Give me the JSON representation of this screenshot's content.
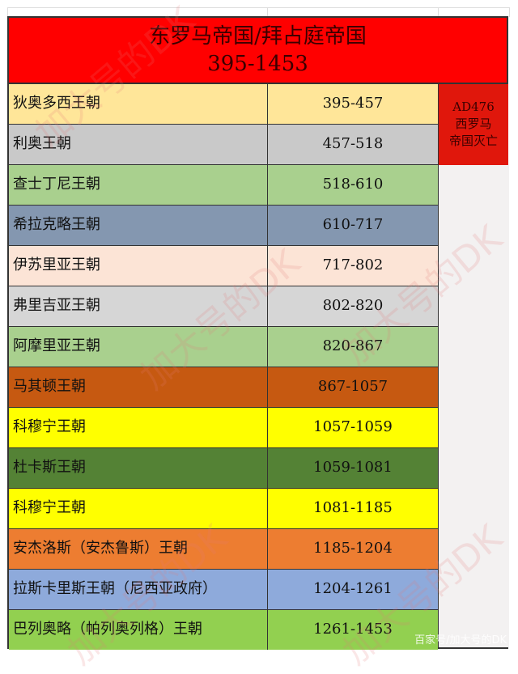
{
  "title": {
    "line1": "东罗马帝国/拜占庭帝国",
    "line2": "395-1453"
  },
  "side_note": {
    "line1": "AD476",
    "line2": "西罗马",
    "line3": "帝国灭亡"
  },
  "rows": [
    {
      "name": "狄奥多西王朝",
      "years": "395-457",
      "color": "#ffe699"
    },
    {
      "name": "利奥王朝",
      "years": "457-518",
      "color": "#c9c9c9"
    },
    {
      "name": "查士丁尼王朝",
      "years": "518-610",
      "color": "#a9d08e"
    },
    {
      "name": "希拉克略王朝",
      "years": "610-717",
      "color": "#8497b0"
    },
    {
      "name": "伊苏里亚王朝",
      "years": "717-802",
      "color": "#fce4d6"
    },
    {
      "name": "弗里吉亚王朝",
      "years": "802-820",
      "color": "#d6d6d6"
    },
    {
      "name": "阿摩里亚王朝",
      "years": "820-867",
      "color": "#a9d08e"
    },
    {
      "name": "马其顿王朝",
      "years": "867-1057",
      "color": "#c65911"
    },
    {
      "name": "科穆宁王朝",
      "years": "1057-1059",
      "color": "#ffff00"
    },
    {
      "name": "杜卡斯王朝",
      "years": "1059-1081",
      "color": "#548235"
    },
    {
      "name": "科穆宁王朝",
      "years": "1081-1185",
      "color": "#ffff00"
    },
    {
      "name": "安杰洛斯（安杰鲁斯）王朝",
      "years": "1185-1204",
      "color": "#ed7d31"
    },
    {
      "name": "拉斯卡里斯王朝（尼西亚政府）",
      "years": "1204-1261",
      "color": "#8eaadb"
    },
    {
      "name": "巴列奥略（帕列奥列格）王朝",
      "years": "1261-1453",
      "color": "#92d050"
    }
  ],
  "watermark": "加大号的DK",
  "credit": "百家号/加大号的DK"
}
